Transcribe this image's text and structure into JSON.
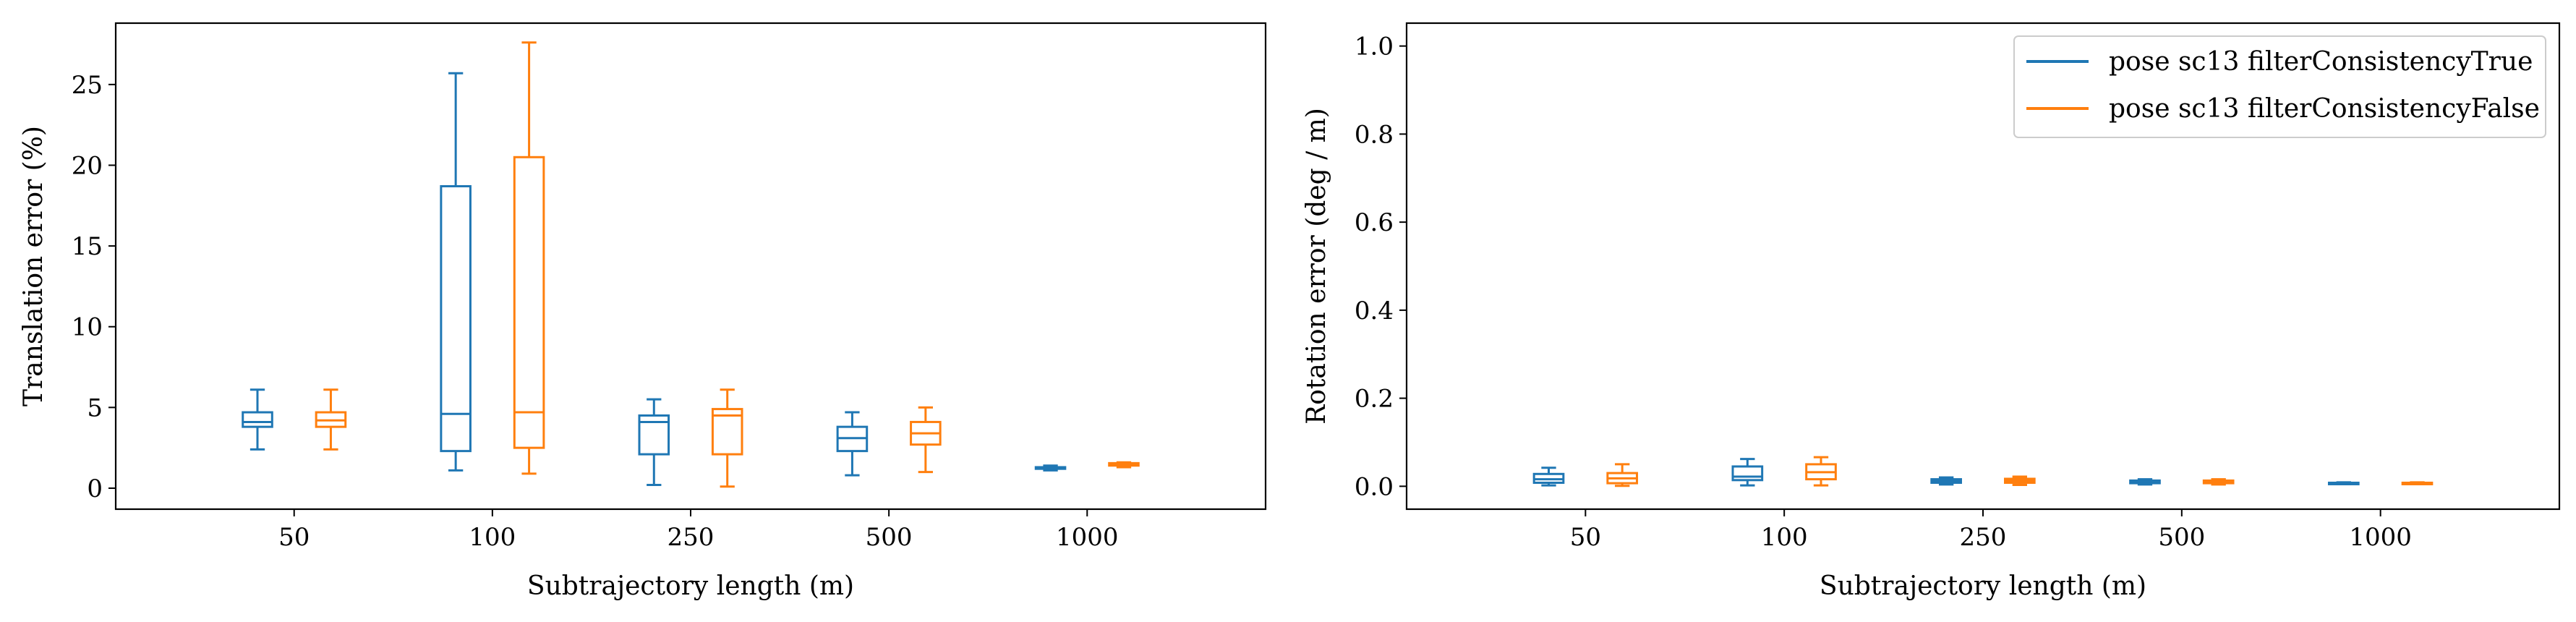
{
  "colors": {
    "series_0": "#1f77b4",
    "series_1": "#ff7f0e"
  },
  "legend": {
    "placement": "top-right",
    "entries": [
      "pose sc13 filterConsistencyTrue",
      "pose sc13 filterConsistencyFalse"
    ]
  },
  "chart_data": [
    {
      "type": "box",
      "title": "",
      "xlabel": "Subtrajectory length (m)",
      "ylabel": "Translation error (%)",
      "categories": [
        "50",
        "100",
        "250",
        "500",
        "1000"
      ],
      "ylim": [
        -1.3,
        28.8
      ],
      "yticks": [
        0,
        5,
        10,
        15,
        20,
        25
      ],
      "grid": false,
      "series": [
        {
          "name": "pose sc13 filterConsistencyTrue",
          "boxes": [
            {
              "whislo": 2.4,
              "q1": 3.8,
              "med": 4.1,
              "q3": 4.7,
              "whishi": 6.1
            },
            {
              "whislo": 1.1,
              "q1": 2.3,
              "med": 4.6,
              "q3": 18.7,
              "whishi": 25.7
            },
            {
              "whislo": 0.2,
              "q1": 2.1,
              "med": 4.1,
              "q3": 4.5,
              "whishi": 5.5
            },
            {
              "whislo": 0.8,
              "q1": 2.3,
              "med": 3.1,
              "q3": 3.8,
              "whishi": 4.7
            },
            {
              "whislo": 1.1,
              "q1": 1.2,
              "med": 1.25,
              "q3": 1.3,
              "whishi": 1.4
            }
          ]
        },
        {
          "name": "pose sc13 filterConsistencyFalse",
          "boxes": [
            {
              "whislo": 2.4,
              "q1": 3.8,
              "med": 4.2,
              "q3": 4.7,
              "whishi": 6.1
            },
            {
              "whislo": 0.9,
              "q1": 2.5,
              "med": 4.7,
              "q3": 20.5,
              "whishi": 27.6
            },
            {
              "whislo": 0.1,
              "q1": 2.1,
              "med": 4.5,
              "q3": 4.9,
              "whishi": 6.1
            },
            {
              "whislo": 1.0,
              "q1": 2.7,
              "med": 3.4,
              "q3": 4.1,
              "whishi": 5.0
            },
            {
              "whislo": 1.3,
              "q1": 1.4,
              "med": 1.45,
              "q3": 1.55,
              "whishi": 1.6
            }
          ]
        }
      ]
    },
    {
      "type": "box",
      "title": "",
      "xlabel": "Subtrajectory length (m)",
      "ylabel": "Rotation error (deg / m)",
      "categories": [
        "50",
        "100",
        "250",
        "500",
        "1000"
      ],
      "ylim": [
        -0.052,
        1.052
      ],
      "yticks": [
        0.0,
        0.2,
        0.4,
        0.6,
        0.8,
        1.0
      ],
      "ytick_labels": [
        "0.0",
        "0.2",
        "0.4",
        "0.6",
        "0.8",
        "1.0"
      ],
      "grid": false,
      "series": [
        {
          "name": "pose sc13 filterConsistencyTrue",
          "boxes": [
            {
              "whislo": 0.002,
              "q1": 0.008,
              "med": 0.016,
              "q3": 0.028,
              "whishi": 0.042
            },
            {
              "whislo": 0.002,
              "q1": 0.014,
              "med": 0.022,
              "q3": 0.045,
              "whishi": 0.062
            },
            {
              "whislo": 0.004,
              "q1": 0.008,
              "med": 0.012,
              "q3": 0.016,
              "whishi": 0.02
            },
            {
              "whislo": 0.004,
              "q1": 0.007,
              "med": 0.01,
              "q3": 0.013,
              "whishi": 0.016
            },
            {
              "whislo": 0.005,
              "q1": 0.006,
              "med": 0.007,
              "q3": 0.008,
              "whishi": 0.009
            }
          ]
        },
        {
          "name": "pose sc13 filterConsistencyFalse",
          "boxes": [
            {
              "whislo": 0.001,
              "q1": 0.007,
              "med": 0.018,
              "q3": 0.03,
              "whishi": 0.05
            },
            {
              "whislo": 0.002,
              "q1": 0.016,
              "med": 0.032,
              "q3": 0.05,
              "whishi": 0.066
            },
            {
              "whislo": 0.003,
              "q1": 0.008,
              "med": 0.012,
              "q3": 0.017,
              "whishi": 0.022
            },
            {
              "whislo": 0.004,
              "q1": 0.007,
              "med": 0.01,
              "q3": 0.013,
              "whishi": 0.016
            },
            {
              "whislo": 0.005,
              "q1": 0.006,
              "med": 0.007,
              "q3": 0.008,
              "whishi": 0.009
            }
          ]
        }
      ]
    }
  ]
}
